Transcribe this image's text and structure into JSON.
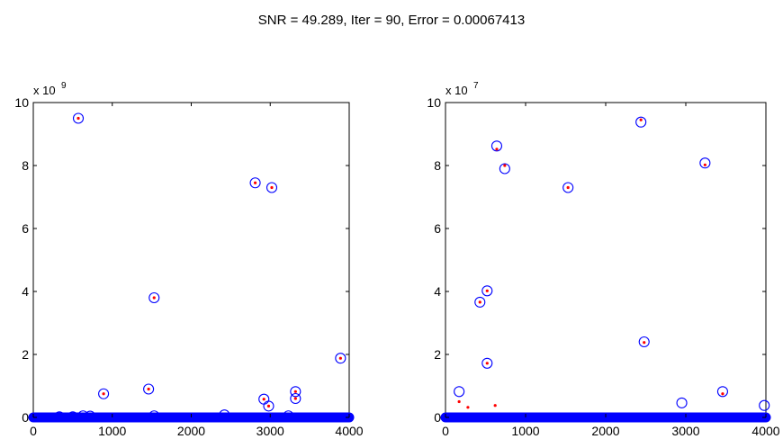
{
  "figure": {
    "title": "SNR = 49.289, Iter = 90, Error = 0.00067413"
  },
  "chart_data": [
    {
      "type": "scatter",
      "title": "",
      "xlabel": "",
      "ylabel": "",
      "xlim": [
        0,
        4000
      ],
      "ylim": [
        0,
        10
      ],
      "y_scale_label": "x 10",
      "y_scale_exponent": "9",
      "xticks": [
        "0",
        "1000",
        "2000",
        "3000",
        "4000"
      ],
      "yticks": [
        "0",
        "2",
        "4",
        "6",
        "8",
        "10"
      ],
      "grid": false,
      "series": [
        {
          "marker": "circle",
          "color": "#0000ff",
          "points": [
            [
              570,
              9.5
            ],
            [
              2810,
              7.45
            ],
            [
              3020,
              7.3
            ],
            [
              1530,
              3.8
            ],
            [
              3890,
              1.88
            ],
            [
              890,
              0.75
            ],
            [
              1460,
              0.9
            ],
            [
              3320,
              0.82
            ],
            [
              3320,
              0.6
            ],
            [
              2920,
              0.58
            ],
            [
              2980,
              0.36
            ],
            [
              330,
              0.02
            ],
            [
              500,
              0.02
            ],
            [
              630,
              0.05
            ],
            [
              720,
              0.04
            ],
            [
              1530,
              0.05
            ],
            [
              2420,
              0.08
            ],
            [
              3230,
              0.05
            ]
          ]
        },
        {
          "marker": "dot",
          "color": "#ff0000",
          "points": [
            [
              570,
              9.5
            ],
            [
              2810,
              7.45
            ],
            [
              3020,
              7.3
            ],
            [
              1530,
              3.8
            ],
            [
              3890,
              1.88
            ],
            [
              890,
              0.75
            ],
            [
              1460,
              0.9
            ],
            [
              3320,
              0.82
            ],
            [
              3320,
              0.6
            ],
            [
              2920,
              0.58
            ],
            [
              2980,
              0.36
            ]
          ]
        }
      ]
    },
    {
      "type": "scatter",
      "title": "",
      "xlabel": "",
      "ylabel": "",
      "xlim": [
        0,
        4000
      ],
      "ylim": [
        0,
        10
      ],
      "y_scale_label": "x 10",
      "y_scale_exponent": "7",
      "xticks": [
        "0",
        "1000",
        "2000",
        "3000",
        "4000"
      ],
      "yticks": [
        "0",
        "2",
        "4",
        "6",
        "8",
        "10"
      ],
      "grid": false,
      "series": [
        {
          "marker": "circle",
          "color": "#0000ff",
          "points": [
            [
              2440,
              9.38
            ],
            [
              640,
              8.62
            ],
            [
              3240,
              8.08
            ],
            [
              740,
              7.9
            ],
            [
              1530,
              7.3
            ],
            [
              520,
              4.02
            ],
            [
              430,
              3.66
            ],
            [
              2480,
              2.4
            ],
            [
              520,
              1.72
            ],
            [
              170,
              0.82
            ],
            [
              3460,
              0.82
            ],
            [
              2950,
              0.46
            ],
            [
              3980,
              0.38
            ]
          ]
        },
        {
          "marker": "dot",
          "color": "#ff0000",
          "points": [
            [
              2440,
              9.45
            ],
            [
              640,
              8.52
            ],
            [
              3240,
              8.02
            ],
            [
              740,
              8.0
            ],
            [
              1530,
              7.3
            ],
            [
              520,
              4.02
            ],
            [
              430,
              3.66
            ],
            [
              2480,
              2.38
            ],
            [
              520,
              1.72
            ],
            [
              170,
              0.5
            ],
            [
              3460,
              0.75
            ],
            [
              280,
              0.32
            ],
            [
              620,
              0.38
            ]
          ]
        }
      ]
    }
  ]
}
